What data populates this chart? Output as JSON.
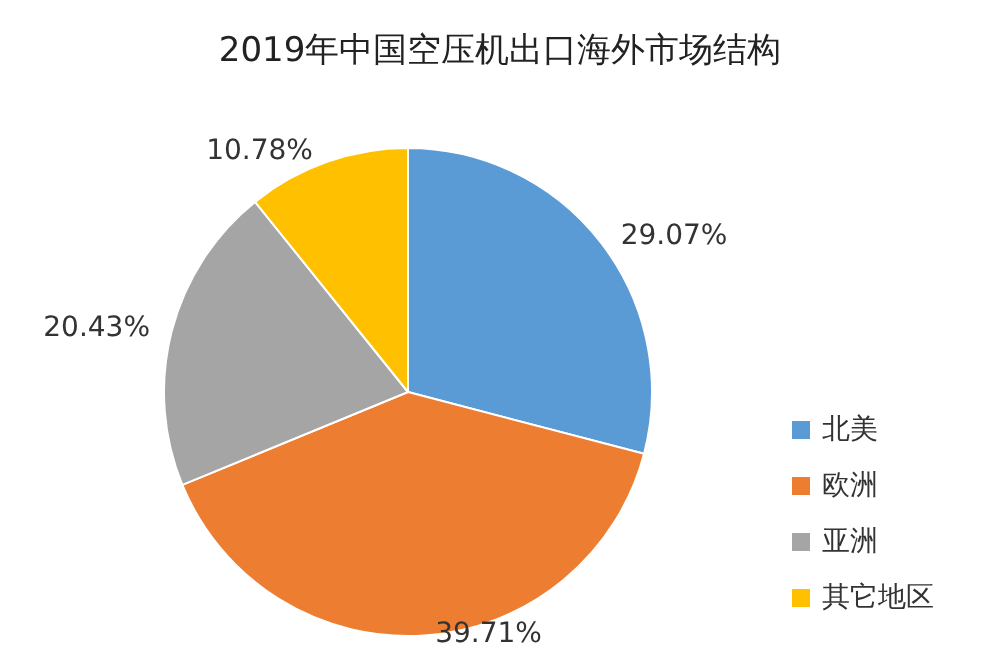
{
  "chart_data": {
    "type": "pie",
    "title": "2019年中国空压机出口海外市场结构",
    "categories": [
      "北美",
      "欧洲",
      "亚洲",
      "其它地区"
    ],
    "values": [
      29.07,
      39.71,
      20.43,
      10.78
    ],
    "value_labels": [
      "29.07%",
      "39.71%",
      "20.43%",
      "10.78%"
    ],
    "colors": [
      "#5b9bd5",
      "#ed7d31",
      "#a5a5a5",
      "#ffc000"
    ],
    "legend": "right"
  }
}
